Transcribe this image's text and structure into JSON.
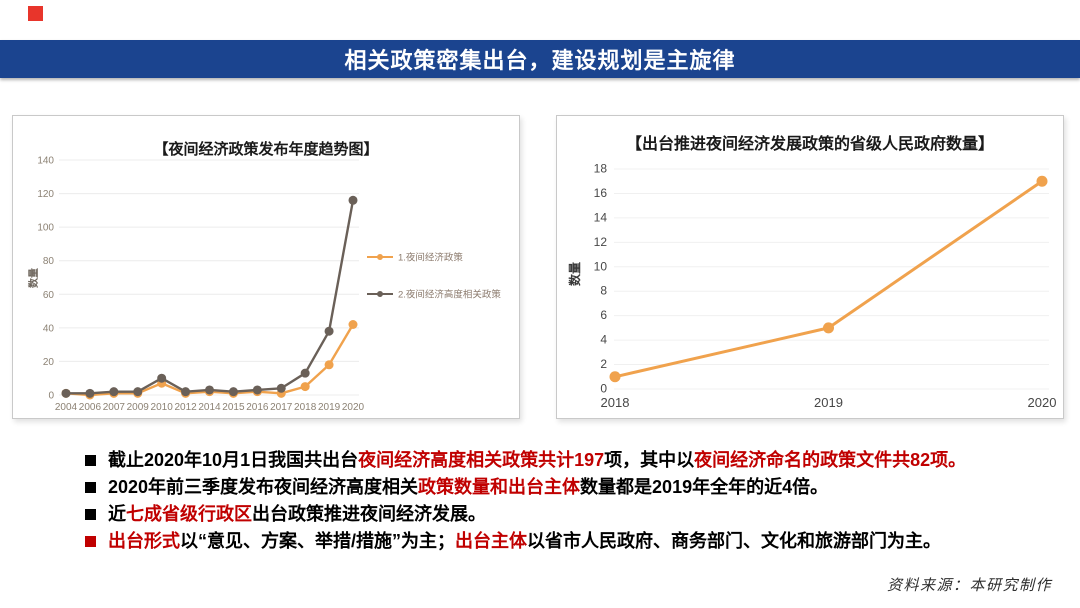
{
  "decoration": {
    "top_left_square_color": "#E8352B"
  },
  "header": {
    "title": "相关政策密集出台，建设规划是主旋律",
    "bg_color": "#1B448F",
    "text_color": "#FFFFFF"
  },
  "chart_data": [
    {
      "type": "line",
      "title": "【夜间经济政策发布年度趋势图】",
      "ylabel": "数量",
      "categories": [
        "2004",
        "2006",
        "2007",
        "2009",
        "2010",
        "2012",
        "2014",
        "2015",
        "2016",
        "2017",
        "2018",
        "2019",
        "2020"
      ],
      "series": [
        {
          "name": "1.夜间经济政策",
          "color": "#F0A24D",
          "values": [
            1,
            0,
            1,
            1,
            7,
            1,
            2,
            1,
            2,
            1,
            5,
            18,
            42
          ]
        },
        {
          "name": "2.夜间经济高度相关政策",
          "color": "#6A6058",
          "values": [
            1,
            1,
            2,
            2,
            10,
            2,
            3,
            2,
            3,
            4,
            13,
            38,
            116
          ]
        }
      ],
      "ylim": [
        0,
        140
      ],
      "ytick_step": 20,
      "grid": true,
      "legend_position": "right"
    },
    {
      "type": "line",
      "title": "【出台推进夜间经济发展政策的省级人民政府数量】",
      "ylabel": "数量",
      "categories": [
        "2018",
        "2019",
        "2020"
      ],
      "series": [
        {
          "name": "省级人民政府数量",
          "color": "#F0A24D",
          "values": [
            1,
            5,
            17
          ]
        }
      ],
      "ylim": [
        0,
        18
      ],
      "ytick_step": 2,
      "grid": true,
      "legend_position": "none"
    }
  ],
  "colors": {
    "black": "#000000",
    "red": "#C00000"
  },
  "bullets": [
    {
      "marker": "black",
      "segments": [
        {
          "color": "black",
          "text": "截止2020年10月1日我国共出台"
        },
        {
          "color": "red",
          "text": "夜间经济高度相关政策共计197"
        },
        {
          "color": "black",
          "text": "项，其中以"
        },
        {
          "color": "red",
          "text": "夜间经济命名的政策文件共82项。"
        }
      ]
    },
    {
      "marker": "black",
      "segments": [
        {
          "color": "black",
          "text": "2020年前三季度发布夜间经济高度相关"
        },
        {
          "color": "red",
          "text": "政策数量和出台主体"
        },
        {
          "color": "black",
          "text": "数量都是2019年全年的近4倍。"
        }
      ]
    },
    {
      "marker": "black",
      "segments": [
        {
          "color": "black",
          "text": "近"
        },
        {
          "color": "red",
          "text": "七成省级行政区"
        },
        {
          "color": "black",
          "text": "出台政策推进夜间经济发展。"
        }
      ]
    },
    {
      "marker": "red",
      "segments": [
        {
          "color": "red",
          "text": "出台形式"
        },
        {
          "color": "black",
          "text": "以“意见、方案、举措/措施”为主；"
        },
        {
          "color": "red",
          "text": "出台主体"
        },
        {
          "color": "black",
          "text": "以省市人民政府、商务部门、文化和旅游部门为主。"
        }
      ]
    }
  ],
  "source_note": "资料来源：本研究制作"
}
